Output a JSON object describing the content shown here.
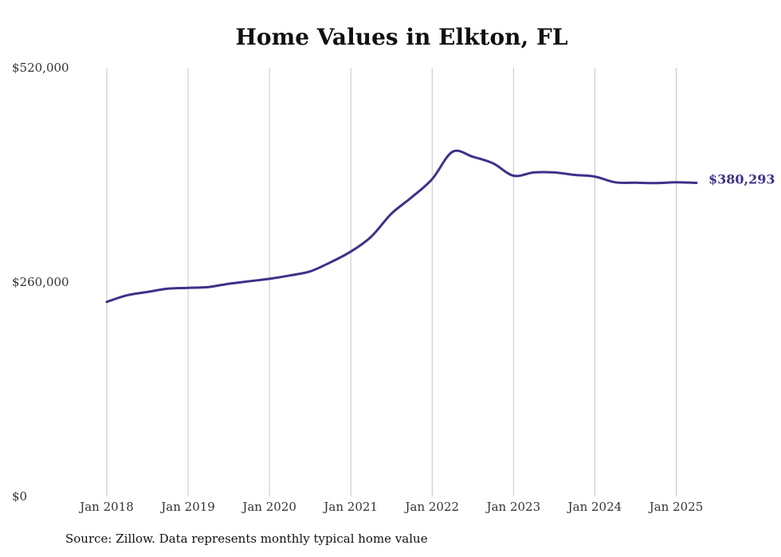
{
  "chart_data": {
    "type": "line",
    "title": "Home Values in Elkton, FL",
    "source": "Source: Zillow. Data represents monthly typical home value",
    "color": "#3d3189",
    "grid": "vertical",
    "xlim": [
      2018.0,
      2025.25
    ],
    "ylim": [
      0,
      520000
    ],
    "x_ticks": [
      {
        "value": 2018,
        "label": "Jan 2018"
      },
      {
        "value": 2019,
        "label": "Jan 2019"
      },
      {
        "value": 2020,
        "label": "Jan 2020"
      },
      {
        "value": 2021,
        "label": "Jan 2021"
      },
      {
        "value": 2022,
        "label": "Jan 2022"
      },
      {
        "value": 2023,
        "label": "Jan 2023"
      },
      {
        "value": 2024,
        "label": "Jan 2024"
      },
      {
        "value": 2025,
        "label": "Jan 2025"
      }
    ],
    "y_ticks": [
      {
        "value": 0,
        "label": "$0"
      },
      {
        "value": 260000,
        "label": "$260,000"
      },
      {
        "value": 520000,
        "label": "$520,000"
      }
    ],
    "end_label": "$380,293",
    "series": [
      {
        "x": [
          2018.0,
          2018.25,
          2018.5,
          2018.75,
          2019.0,
          2019.25,
          2019.5,
          2019.75,
          2020.0,
          2020.25,
          2020.5,
          2020.75,
          2021.0,
          2021.25,
          2021.5,
          2021.75,
          2022.0,
          2022.25,
          2022.5,
          2022.75,
          2023.0,
          2023.25,
          2023.5,
          2023.75,
          2024.0,
          2024.25,
          2024.5,
          2024.75,
          2025.0,
          2025.25
        ],
        "y": [
          236000,
          244000,
          248000,
          252000,
          253000,
          254000,
          258000,
          261000,
          264000,
          268000,
          273000,
          284000,
          297000,
          315000,
          343000,
          363000,
          385000,
          418000,
          412000,
          404000,
          389000,
          393000,
          393000,
          390000,
          388000,
          381000,
          380500,
          380000,
          381000,
          380293
        ]
      }
    ]
  }
}
